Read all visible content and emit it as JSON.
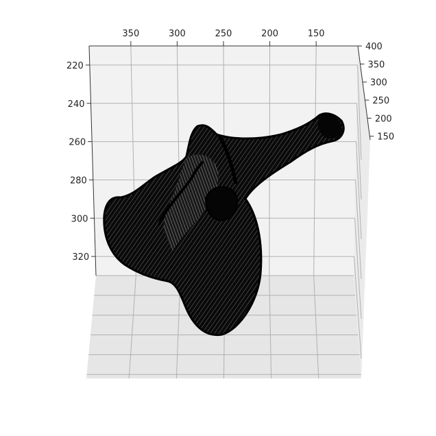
{
  "chart_data": {
    "type": "surface3d",
    "title": "",
    "xlabel": "",
    "ylabel": "",
    "zlabel": "",
    "x_ticks": [
      "350",
      "300",
      "250",
      "200",
      "150"
    ],
    "y_ticks": [
      "220",
      "240",
      "260",
      "280",
      "300",
      "320"
    ],
    "z_ticks": [
      "400",
      "350",
      "300",
      "250",
      "200",
      "150"
    ],
    "x_range": [
      395,
      105
    ],
    "y_range": [
      210,
      330
    ],
    "z_range": [
      140,
      400
    ],
    "grid": true,
    "surface_color": "#000000",
    "pane_color": "#f2f2f2",
    "grid_color": "#b0b0b0"
  }
}
